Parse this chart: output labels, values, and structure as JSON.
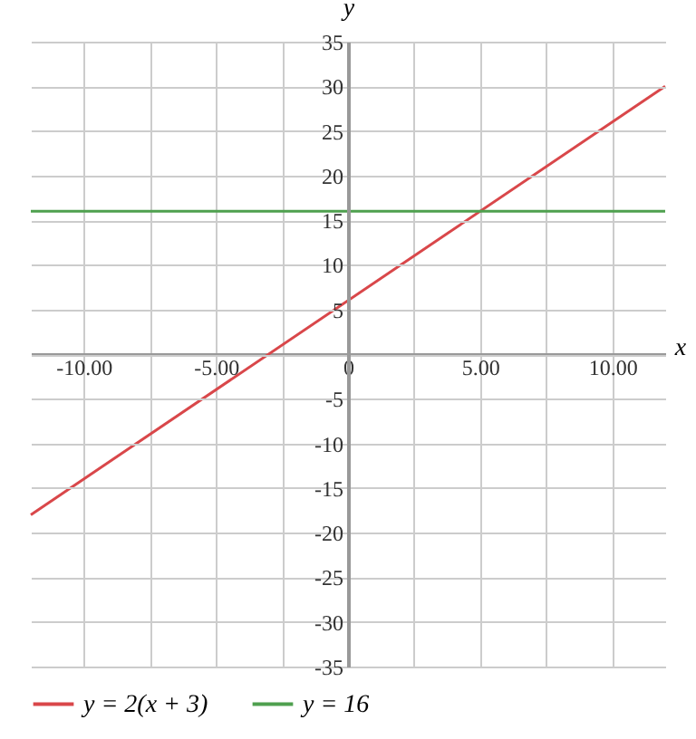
{
  "chart_data": {
    "type": "line",
    "xlabel": "x",
    "ylabel": "y",
    "xlim": [
      -12,
      12
    ],
    "ylim": [
      -35,
      35
    ],
    "xticks": [
      {
        "value": -10,
        "label": "-10.00"
      },
      {
        "value": -7.5,
        "label": null
      },
      {
        "value": -5,
        "label": "-5.00"
      },
      {
        "value": -2.5,
        "label": null
      },
      0,
      {
        "value": 2.5,
        "label": null
      },
      {
        "value": 5,
        "label": "5.00"
      },
      {
        "value": 7.5,
        "label": null
      },
      {
        "value": 10,
        "label": "10.00"
      }
    ],
    "yticks": [
      -35,
      -30,
      -25,
      -20,
      -15,
      -10,
      -5,
      {
        "value": 0,
        "label": null
      },
      5,
      10,
      15,
      20,
      25,
      30,
      35
    ],
    "x": [
      -12,
      12
    ],
    "series": [
      {
        "name": "y = 2(x + 3)",
        "color": "#d9474a",
        "values": [
          -18,
          30
        ]
      },
      {
        "name": "y = 16",
        "color": "#4fa04f",
        "values": [
          16,
          16
        ]
      }
    ],
    "grid": true,
    "legend": "bottom"
  }
}
